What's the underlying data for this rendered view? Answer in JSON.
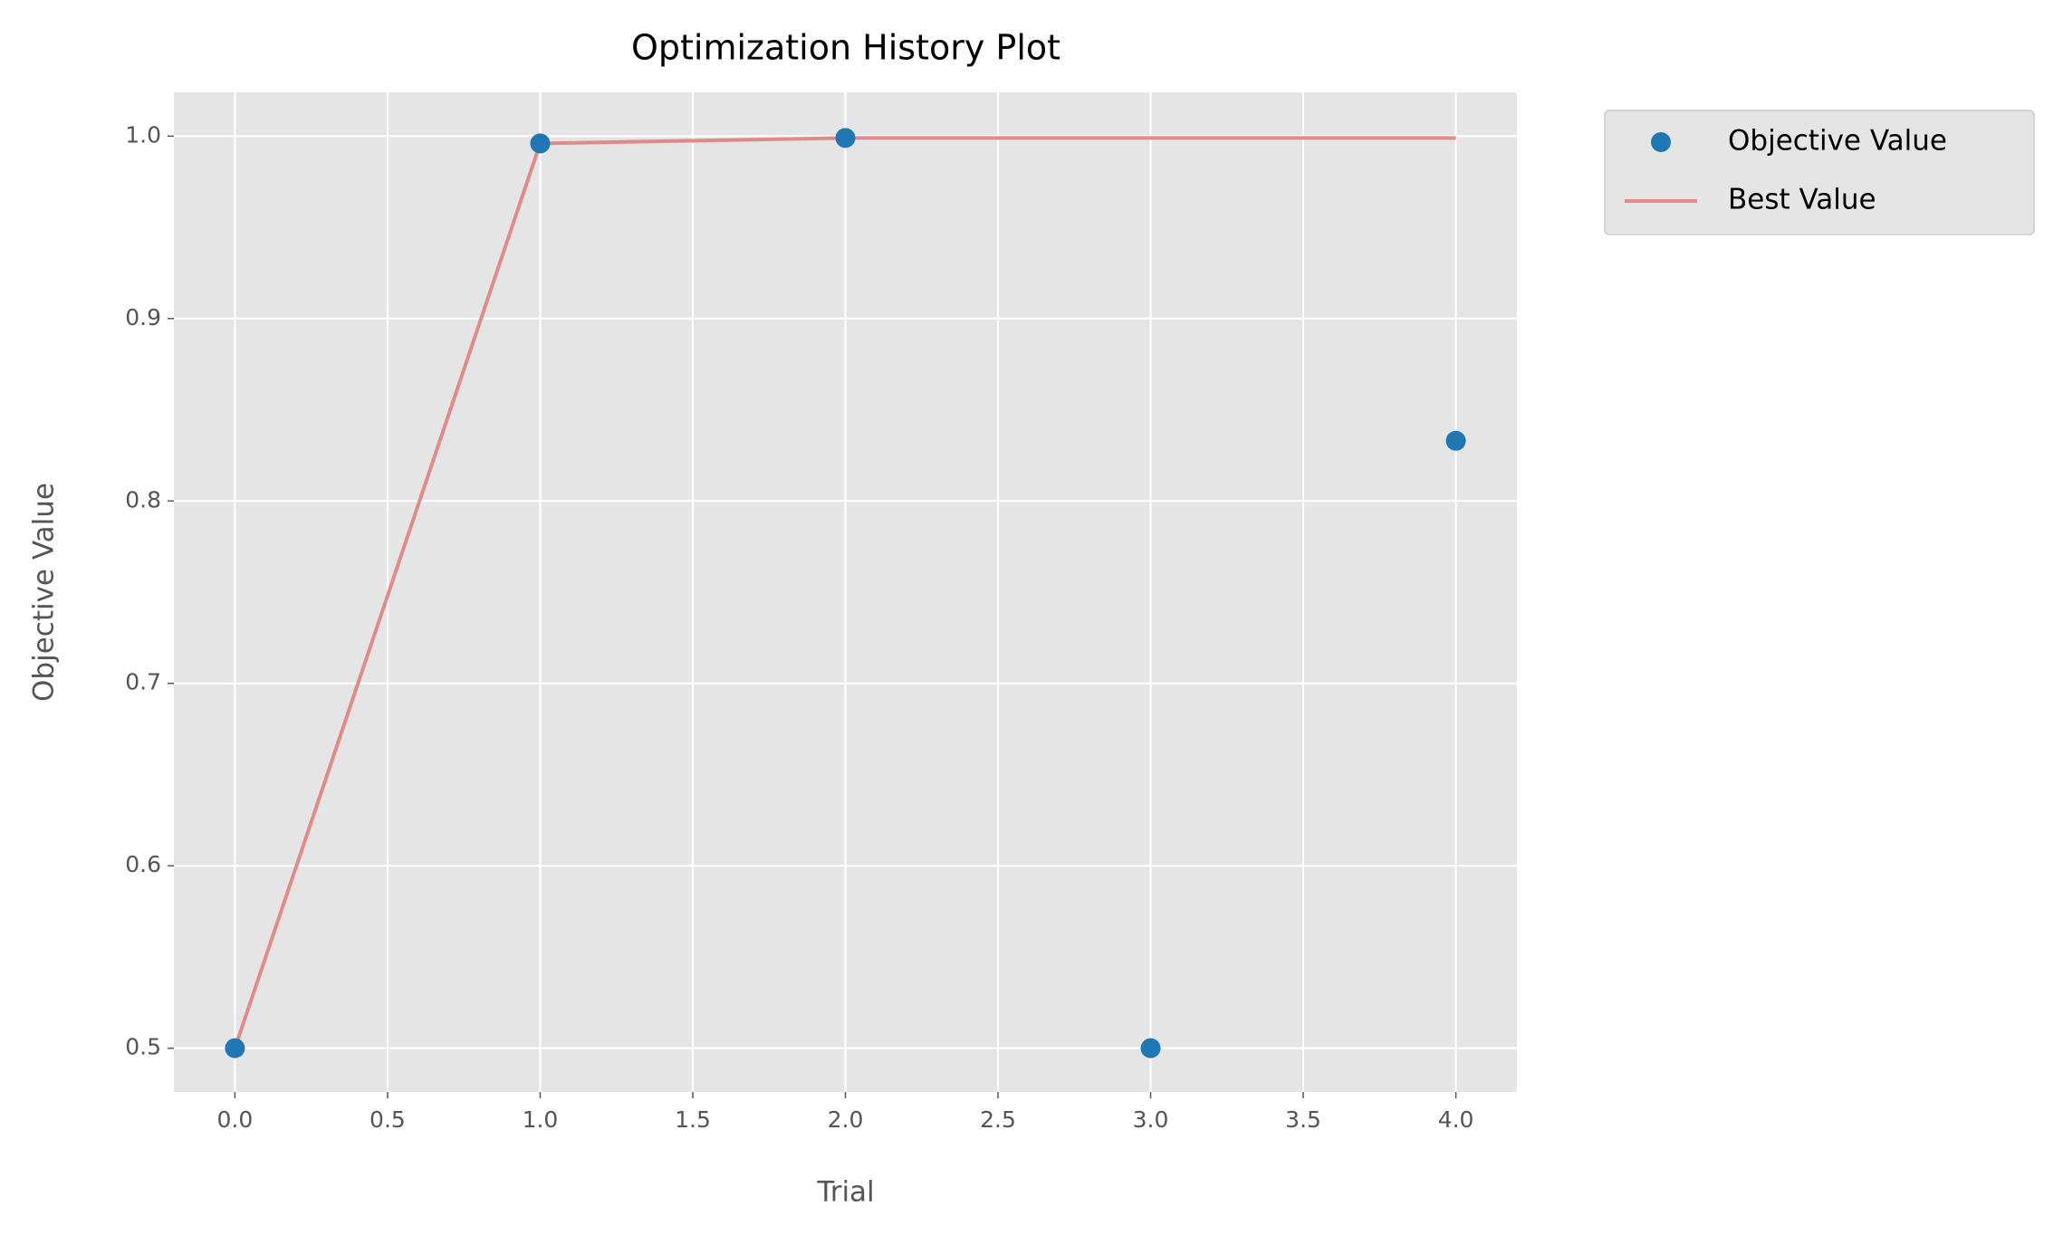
{
  "chart_data": {
    "type": "scatter-line",
    "title": "Optimization History Plot",
    "xlabel": "Trial",
    "ylabel": "Objective Value",
    "x": [
      0,
      1,
      2,
      3,
      4
    ],
    "series": [
      {
        "name": "Objective Value",
        "kind": "scatter",
        "color": "#1f77b4",
        "values": [
          0.5,
          0.996,
          0.999,
          0.5,
          0.833
        ]
      },
      {
        "name": "Best Value",
        "kind": "line",
        "color": "#e08a8a",
        "values": [
          0.5,
          0.996,
          0.999,
          0.999,
          0.999
        ]
      }
    ],
    "xlim": [
      -0.2,
      4.2
    ],
    "ylim": [
      0.476,
      1.024
    ],
    "xticks": [
      {
        "value": 0,
        "label": "0.0"
      },
      0.5,
      {
        "value": 1,
        "label": "1.0"
      },
      1.5,
      {
        "value": 2,
        "label": "2.0"
      },
      2.5,
      {
        "value": 3,
        "label": "3.0"
      },
      3.5,
      {
        "value": 4,
        "label": "4.0"
      }
    ],
    "yticks": [
      0.5,
      0.6,
      0.7,
      0.8,
      0.9,
      {
        "value": 1,
        "label": "1.0"
      }
    ],
    "grid": true,
    "legend": "outside-upper-right"
  }
}
